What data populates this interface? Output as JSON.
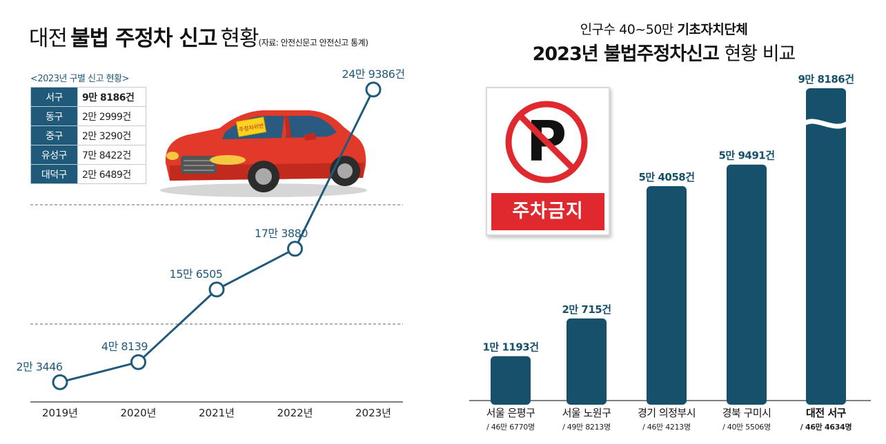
{
  "left": {
    "title_light1": "대전",
    "title_bold": "불법 주정차 신고",
    "title_light2": "현황",
    "title_source": "(자료: 안전신문고 안전신고 통계)",
    "table_caption": "<2023년 구별 신고 현황>",
    "table": [
      {
        "district": "서구",
        "count": "9만 8186건",
        "highlight": true
      },
      {
        "district": "동구",
        "count": "2만 2999건",
        "highlight": false
      },
      {
        "district": "중구",
        "count": "2만 3290건",
        "highlight": false
      },
      {
        "district": "유성구",
        "count": "7만 8422건",
        "highlight": false
      },
      {
        "district": "대덕구",
        "count": "2만 6489건",
        "highlight": false
      }
    ],
    "car_sticker": "주정차위반"
  },
  "right": {
    "subtitle_light": "인구수 40~50만",
    "subtitle_bold": "기초자치단체",
    "title_bold": "2023년 불법주정차신고",
    "title_light": "현황 비교",
    "sign_label": "주차금지"
  },
  "chart_data": [
    {
      "type": "line",
      "title": "대전 불법 주정차 신고 현황",
      "x": [
        "2019년",
        "2020년",
        "2021년",
        "2022년",
        "2023년"
      ],
      "series": [
        {
          "values": [
            23446,
            48139,
            156505,
            173880,
            249386
          ],
          "labels": [
            "2만 3446",
            "4만 8139",
            "15만 6505",
            "17만 3880",
            "24만 9386건"
          ]
        }
      ],
      "grid": false,
      "colors": {
        "line": "#1f5a7a",
        "marker_fill": "#ffffff",
        "label": "#1f5a7a"
      }
    },
    {
      "type": "bar",
      "title": "2023년 불법주정차신고 현황 비교",
      "categories": [
        "서울 은평구",
        "서울 노원구",
        "경기 의정부시",
        "경북 구미시",
        "대전 서구"
      ],
      "sublabels": [
        "/ 46만 6770명",
        "/ 49만 8213명",
        "/ 46만 4213명",
        "/ 40만 5506명",
        "/ 46만 4634명"
      ],
      "values": [
        11193,
        20715,
        54058,
        59491,
        98186
      ],
      "value_labels": [
        "1만 1193건",
        "2만 715건",
        "5만 4058건",
        "5만 9491건",
        "9만 8186건"
      ],
      "highlight_index": 4,
      "axis_break_on_highlight": true,
      "colors": {
        "bar": "#17506b",
        "label": "#17506b"
      }
    }
  ]
}
